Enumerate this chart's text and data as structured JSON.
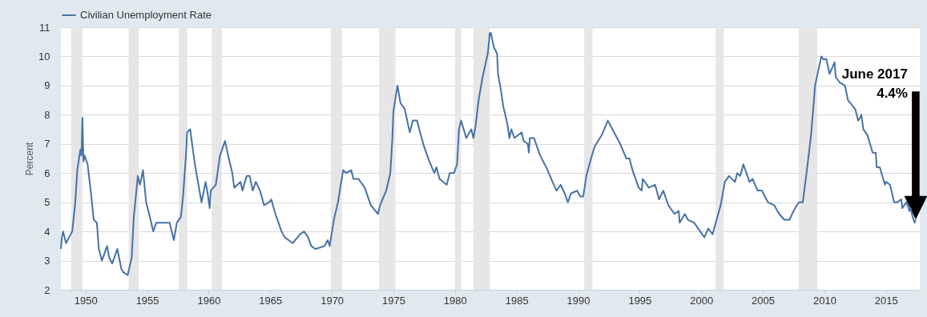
{
  "chart_data": {
    "type": "line",
    "ylabel": "Percent",
    "xlim": [
      1948,
      2017.75
    ],
    "ylim": [
      2,
      11
    ],
    "xticks": [
      1950,
      1955,
      1960,
      1965,
      1970,
      1975,
      1980,
      1985,
      1990,
      1995,
      2000,
      2005,
      2010,
      2015
    ],
    "yticks": [
      2,
      3,
      4,
      5,
      6,
      7,
      8,
      9,
      10,
      11
    ],
    "grid": "y",
    "legend": "top left",
    "marker": "none",
    "line_style": "solid",
    "series": [
      {
        "name": "Civilian Unemployment Rate",
        "color": "#4572a7",
        "x": [
          1948.0,
          1948.08,
          1948.17,
          1948.42,
          1948.67,
          1948.92,
          1949.17,
          1949.33,
          1949.58,
          1949.67,
          1949.75,
          1949.83,
          1949.92,
          1950.17,
          1950.42,
          1950.67,
          1950.92,
          1951.08,
          1951.33,
          1951.75,
          1951.92,
          1952.17,
          1952.58,
          1952.92,
          1953.08,
          1953.42,
          1953.75,
          1953.92,
          1954.25,
          1954.42,
          1954.67,
          1954.92,
          1955.17,
          1955.5,
          1955.75,
          1956.42,
          1956.83,
          1957.17,
          1957.42,
          1957.75,
          1957.92,
          1958.17,
          1958.25,
          1958.5,
          1958.75,
          1958.92,
          1959.42,
          1959.75,
          1959.92,
          1960.08,
          1960.17,
          1960.58,
          1960.75,
          1960.92,
          1961.33,
          1961.58,
          1961.92,
          1962.08,
          1962.58,
          1962.75,
          1963.08,
          1963.33,
          1963.58,
          1963.83,
          1964.17,
          1964.5,
          1964.92,
          1965.08,
          1965.42,
          1965.92,
          1966.17,
          1966.83,
          1967.42,
          1967.75,
          1968.08,
          1968.33,
          1968.67,
          1969.42,
          1969.67,
          1969.83,
          1970.17,
          1970.5,
          1970.92,
          1971.17,
          1971.58,
          1971.75,
          1972.17,
          1972.67,
          1972.92,
          1973.17,
          1973.75,
          1973.92,
          1974.42,
          1974.75,
          1974.92,
          1975.0,
          1975.33,
          1975.58,
          1975.92,
          1976.33,
          1976.58,
          1976.92,
          1977.17,
          1977.5,
          1977.92,
          1978.33,
          1978.5,
          1978.75,
          1979.33,
          1979.58,
          1979.92,
          1980.17,
          1980.33,
          1980.5,
          1980.92,
          1981.33,
          1981.5,
          1981.67,
          1981.92,
          1982.25,
          1982.67,
          1982.83,
          1982.92,
          1983.17,
          1983.42,
          1983.5,
          1983.75,
          1983.92,
          1984.25,
          1984.42,
          1984.58,
          1984.83,
          1985.42,
          1985.58,
          1985.92,
          1986.0,
          1986.08,
          1986.42,
          1986.92,
          1987.42,
          1987.92,
          1988.25,
          1988.58,
          1988.92,
          1989.17,
          1989.42,
          1989.92,
          1990.17,
          1990.42,
          1990.67,
          1990.92,
          1991.33,
          1991.92,
          1992.42,
          1992.67,
          1992.92,
          1993.42,
          1993.92,
          1994.17,
          1994.42,
          1994.92,
          1995.17,
          1995.25,
          1995.75,
          1996.25,
          1996.58,
          1996.92,
          1997.33,
          1997.83,
          1998.17,
          1998.25,
          1998.67,
          1998.92,
          1999.42,
          1999.92,
          2000.25,
          2000.58,
          2000.92,
          2001.25,
          2001.58,
          2001.92,
          2002.25,
          2002.75,
          2002.92,
          2003.17,
          2003.42,
          2003.92,
          2004.17,
          2004.58,
          2004.92,
          2005.42,
          2005.92,
          2006.33,
          2006.75,
          2006.92,
          2007.17,
          2007.5,
          2007.92,
          2008.25,
          2008.58,
          2008.92,
          2009.25,
          2009.5,
          2009.75,
          2009.92,
          2010.17,
          2010.42,
          2010.83,
          2010.92,
          2011.25,
          2011.67,
          2011.92,
          2012.5,
          2012.75,
          2012.92,
          2013.0,
          2013.17,
          2013.5,
          2013.92,
          2014.17,
          2014.25,
          2014.5,
          2014.92,
          2015.0,
          2015.33,
          2015.67,
          2015.92,
          2016.25,
          2016.33,
          2016.67,
          2016.92,
          2017.0,
          2017.17,
          2017.33,
          2017.42
        ],
        "values": [
          3.4,
          3.8,
          4.0,
          3.6,
          3.8,
          4.0,
          5.0,
          6.1,
          6.8,
          6.6,
          7.9,
          6.4,
          6.6,
          6.3,
          5.4,
          4.4,
          4.3,
          3.4,
          3.0,
          3.5,
          3.1,
          2.9,
          3.4,
          2.7,
          2.6,
          2.5,
          3.1,
          4.5,
          5.9,
          5.6,
          6.1,
          5.0,
          4.6,
          4.0,
          4.3,
          4.3,
          4.3,
          3.7,
          4.3,
          4.5,
          5.2,
          6.7,
          7.4,
          7.5,
          6.7,
          6.2,
          5.0,
          5.7,
          5.3,
          4.8,
          5.4,
          5.6,
          6.1,
          6.6,
          7.1,
          6.6,
          6.0,
          5.5,
          5.7,
          5.4,
          5.9,
          5.9,
          5.4,
          5.7,
          5.4,
          4.9,
          5.0,
          5.1,
          4.6,
          4.0,
          3.8,
          3.6,
          3.9,
          4.0,
          3.8,
          3.5,
          3.4,
          3.5,
          3.7,
          3.5,
          4.4,
          5.0,
          6.1,
          6.0,
          6.1,
          5.8,
          5.8,
          5.5,
          5.2,
          4.9,
          4.6,
          4.9,
          5.4,
          6.0,
          7.2,
          8.1,
          9.0,
          8.4,
          8.2,
          7.4,
          7.8,
          7.8,
          7.4,
          6.9,
          6.4,
          6.0,
          6.2,
          5.8,
          5.6,
          6.0,
          6.0,
          6.3,
          7.5,
          7.8,
          7.2,
          7.5,
          7.2,
          7.6,
          8.5,
          9.3,
          10.1,
          10.8,
          10.8,
          10.3,
          10.1,
          9.4,
          8.8,
          8.3,
          7.7,
          7.2,
          7.5,
          7.2,
          7.4,
          7.1,
          7.0,
          6.7,
          7.2,
          7.2,
          6.6,
          6.2,
          5.7,
          5.4,
          5.6,
          5.3,
          5.0,
          5.3,
          5.4,
          5.2,
          5.2,
          5.9,
          6.3,
          6.9,
          7.3,
          7.8,
          7.6,
          7.4,
          7.0,
          6.5,
          6.5,
          6.1,
          5.5,
          5.4,
          5.8,
          5.5,
          5.6,
          5.1,
          5.4,
          4.9,
          4.6,
          4.7,
          4.3,
          4.6,
          4.4,
          4.3,
          4.0,
          3.8,
          4.1,
          3.9,
          4.4,
          4.9,
          5.7,
          5.9,
          5.7,
          6.0,
          5.9,
          6.3,
          5.7,
          5.8,
          5.4,
          5.4,
          5.0,
          4.9,
          4.6,
          4.4,
          4.4,
          4.4,
          4.7,
          5.0,
          5.0,
          6.1,
          7.3,
          9.0,
          9.5,
          10.0,
          9.9,
          9.9,
          9.4,
          9.8,
          9.3,
          9.1,
          9.0,
          8.5,
          8.2,
          7.8,
          7.9,
          8.0,
          7.5,
          7.3,
          6.7,
          6.7,
          6.2,
          6.2,
          5.6,
          5.7,
          5.6,
          5.0,
          5.0,
          5.1,
          4.8,
          5.0,
          4.7,
          4.8,
          4.5,
          4.3,
          4.4
        ]
      }
    ],
    "bands": [
      {
        "axis": "x",
        "from": 1948.83,
        "to": 1949.75,
        "color": "#e6e6e6"
      },
      {
        "axis": "x",
        "from": 1953.5,
        "to": 1954.33,
        "color": "#e6e6e6"
      },
      {
        "axis": "x",
        "from": 1957.58,
        "to": 1958.25,
        "color": "#e6e6e6"
      },
      {
        "axis": "x",
        "from": 1960.25,
        "to": 1961.08,
        "color": "#e6e6e6"
      },
      {
        "axis": "x",
        "from": 1969.92,
        "to": 1970.83,
        "color": "#e6e6e6"
      },
      {
        "axis": "x",
        "from": 1973.83,
        "to": 1975.17,
        "color": "#e6e6e6"
      },
      {
        "axis": "x",
        "from": 1980.0,
        "to": 1980.5,
        "color": "#e6e6e6"
      },
      {
        "axis": "x",
        "from": 1981.5,
        "to": 1982.83,
        "color": "#e6e6e6"
      },
      {
        "axis": "x",
        "from": 1990.5,
        "to": 1991.17,
        "color": "#e6e6e6"
      },
      {
        "axis": "x",
        "from": 2001.17,
        "to": 2001.83,
        "color": "#e6e6e6"
      },
      {
        "axis": "x",
        "from": 2007.92,
        "to": 2009.42,
        "color": "#e6e6e6"
      }
    ],
    "annotations": [
      "June 2017\n4.4%"
    ]
  }
}
